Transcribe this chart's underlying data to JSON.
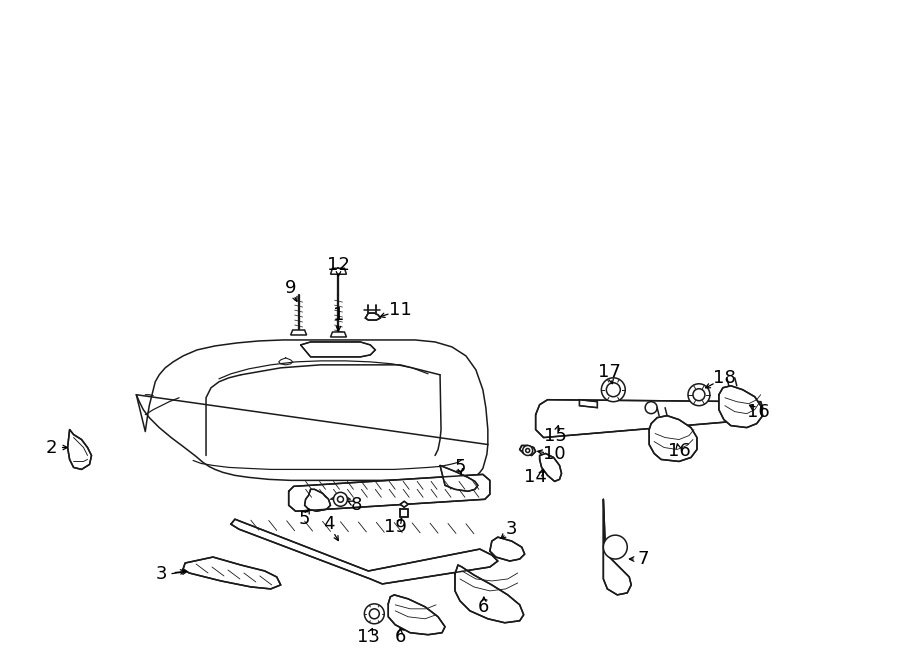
{
  "background_color": "#ffffff",
  "line_color": "#1a1a1a",
  "lw": 1.1,
  "fig_width": 9.0,
  "fig_height": 6.61,
  "dpi": 100
}
